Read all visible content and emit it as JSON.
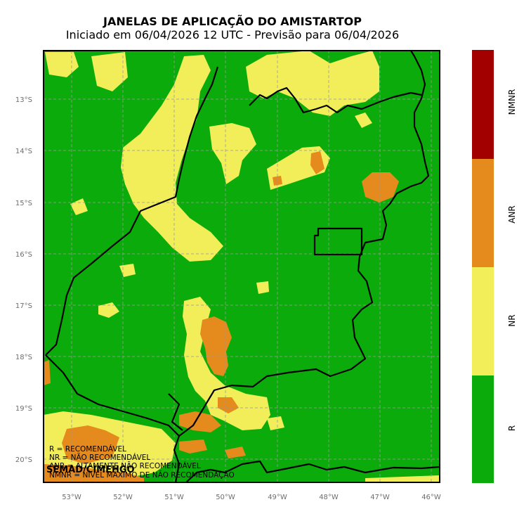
{
  "title": "JANELAS DE APLICAÇÃO DO AMISTARTOP",
  "subtitle": "Iniciado em 06/04/2026 12 UTC - Previsão para 06/04/2026",
  "colors": {
    "R": "#0aab0a",
    "NR": "#f2ee5a",
    "ANR": "#e58a1c",
    "NMNR": "#a20000"
  },
  "map": {
    "lon_range": [
      -53.55,
      -45.85
    ],
    "lat_range": [
      -20.45,
      -12.05
    ],
    "lon_ticks": [
      "53°W",
      "52°W",
      "51°W",
      "50°W",
      "49°W",
      "48°W",
      "47°W",
      "46°W"
    ],
    "lat_ticks": [
      "13°S",
      "14°S",
      "15°S",
      "16°S",
      "17°S",
      "18°S",
      "19°S",
      "20°S"
    ],
    "grid": true
  },
  "colorbar": {
    "labels": [
      "NMNR",
      "ANR",
      "NR",
      "R"
    ]
  },
  "legend": [
    "R = RECOMENDÁVEL",
    "NR = NÃO RECOMENDÁVEL",
    "ANR = ALTAMENTE NÃO RECOMENDÁVEL",
    "NMNR = NÍVEL MÁXIMO DE NÃO RECOMENDAÇÃO"
  ],
  "credit": "SEMAD/CIMEHGO"
}
